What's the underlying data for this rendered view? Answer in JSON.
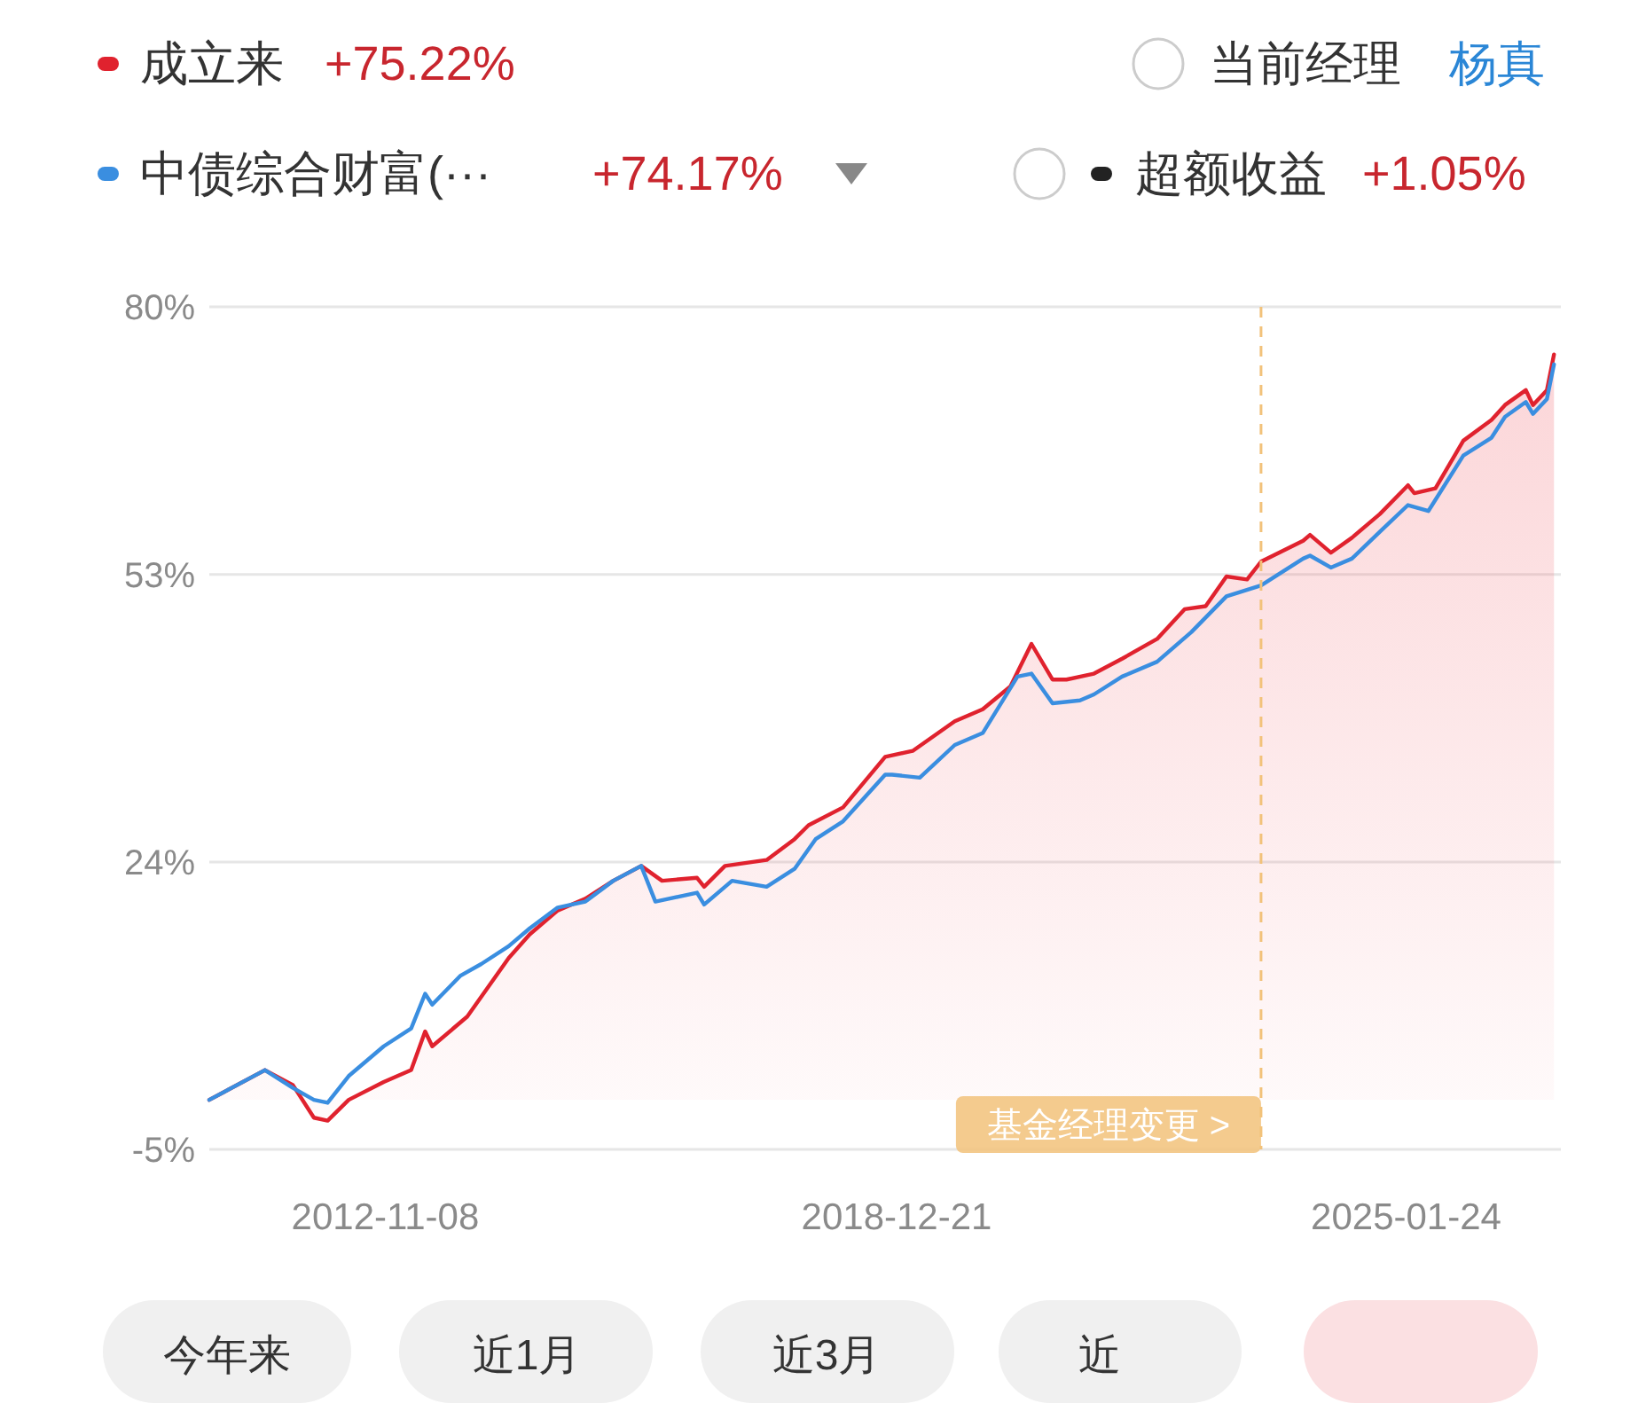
{
  "chart_data": {
    "type": "line",
    "legend": "top",
    "grid": "y",
    "xlim": [
      "2010-10",
      "2026-12"
    ],
    "xticks": [
      {
        "value": "2012-11-08",
        "label": "2012-11-08"
      },
      {
        "value": "2018-12-21",
        "label": "2018-12-21"
      },
      {
        "value": "2025-01-24",
        "label": "2025-01-24"
      }
    ],
    "ylim": [
      -5,
      80
    ],
    "yticks": [
      {
        "value": -5,
        "label": "-5%"
      },
      {
        "value": 24,
        "label": "24%"
      },
      {
        "value": 53,
        "label": "53%"
      },
      {
        "value": 80,
        "label": "80%"
      }
    ],
    "ref_lines": [
      {
        "axis": "x",
        "value": "2023-05",
        "label": "基金经理变更 >",
        "color": "#f2c27a",
        "line_style": "dashed"
      }
    ],
    "annotations": [
      "+75.22%",
      "+74.17%",
      "当前经理",
      "杨真",
      "超额收益",
      "+1.05%",
      "今年来",
      "近1月",
      "近3月",
      "近"
    ],
    "series": [
      {
        "name": "中债综合财富(···",
        "color": "#3a8ee0",
        "x": [
          "2010-10",
          "2011-06",
          "2011-10",
          "2012-01",
          "2012-03",
          "2012-06",
          "2012-11",
          "2013-03",
          "2013-05",
          "2013-06",
          "2013-10",
          "2014-01",
          "2014-05",
          "2014-08",
          "2014-12",
          "2015-04",
          "2015-08",
          "2015-12",
          "2016-02",
          "2016-08",
          "2016-09",
          "2017-01",
          "2017-06",
          "2017-10",
          "2018-01",
          "2018-05",
          "2018-11",
          "2018-12",
          "2019-04",
          "2019-09",
          "2020-01",
          "2020-06",
          "2020-08",
          "2020-11",
          "2021-03",
          "2021-05",
          "2021-09",
          "2022-02",
          "2022-07",
          "2022-12",
          "2023-05",
          "2023-11",
          "2023-12",
          "2024-03",
          "2024-06",
          "2024-10",
          "2025-02",
          "2025-05",
          "2025-10",
          "2026-02",
          "2026-04",
          "2026-07",
          "2026-08",
          "2026-10",
          "2026-11"
        ],
        "values": [
          0,
          3.0,
          1.2,
          0.0,
          -0.3,
          2.4,
          5.4,
          7.2,
          10.7,
          9.6,
          12.5,
          13.7,
          15.5,
          17.3,
          19.4,
          20.0,
          22.1,
          23.6,
          20.0,
          20.9,
          19.7,
          22.1,
          21.5,
          23.3,
          26.3,
          28.1,
          32.8,
          32.8,
          32.5,
          35.8,
          37.0,
          42.7,
          43.0,
          40.0,
          40.3,
          40.9,
          42.7,
          44.2,
          47.2,
          50.8,
          51.9,
          54.6,
          54.9,
          53.7,
          54.6,
          57.3,
          60.0,
          59.4,
          65.0,
          66.8,
          68.9,
          70.4,
          69.2,
          70.7,
          74.2
        ]
      },
      {
        "name": "成立来",
        "type": "area",
        "color": "#e0222e",
        "x": [
          "2010-10",
          "2011-06",
          "2011-10",
          "2012-01",
          "2012-03",
          "2012-06",
          "2012-11",
          "2013-03",
          "2013-05",
          "2013-06",
          "2013-11",
          "2014-05",
          "2014-08",
          "2014-12",
          "2015-04",
          "2015-08",
          "2015-12",
          "2016-03",
          "2016-08",
          "2016-09",
          "2016-12",
          "2017-06",
          "2017-10",
          "2017-12",
          "2018-05",
          "2018-11",
          "2019-03",
          "2019-09",
          "2020-01",
          "2020-05",
          "2020-08",
          "2020-11",
          "2021-01",
          "2021-05",
          "2021-09",
          "2022-02",
          "2022-06",
          "2022-09",
          "2022-12",
          "2023-03",
          "2023-05",
          "2023-11",
          "2023-12",
          "2024-03",
          "2024-06",
          "2024-10",
          "2025-02",
          "2025-03",
          "2025-06",
          "2025-10",
          "2026-02",
          "2026-04",
          "2026-07",
          "2026-08",
          "2026-10",
          "2026-11"
        ],
        "values": [
          0,
          3.0,
          1.5,
          -1.8,
          -2.1,
          0.0,
          1.8,
          3.0,
          6.9,
          5.4,
          8.4,
          14.3,
          16.7,
          19.1,
          20.3,
          22.1,
          23.6,
          22.1,
          22.4,
          21.5,
          23.6,
          24.2,
          26.3,
          27.7,
          29.5,
          34.6,
          35.2,
          38.2,
          39.4,
          41.7,
          46.0,
          42.4,
          42.4,
          43.0,
          44.5,
          46.5,
          49.5,
          49.8,
          52.8,
          52.5,
          54.3,
          56.4,
          57.0,
          55.2,
          56.7,
          59.1,
          62.0,
          61.2,
          61.7,
          66.5,
          68.6,
          70.1,
          71.6,
          70.1,
          71.6,
          75.2
        ]
      }
    ]
  }
}
